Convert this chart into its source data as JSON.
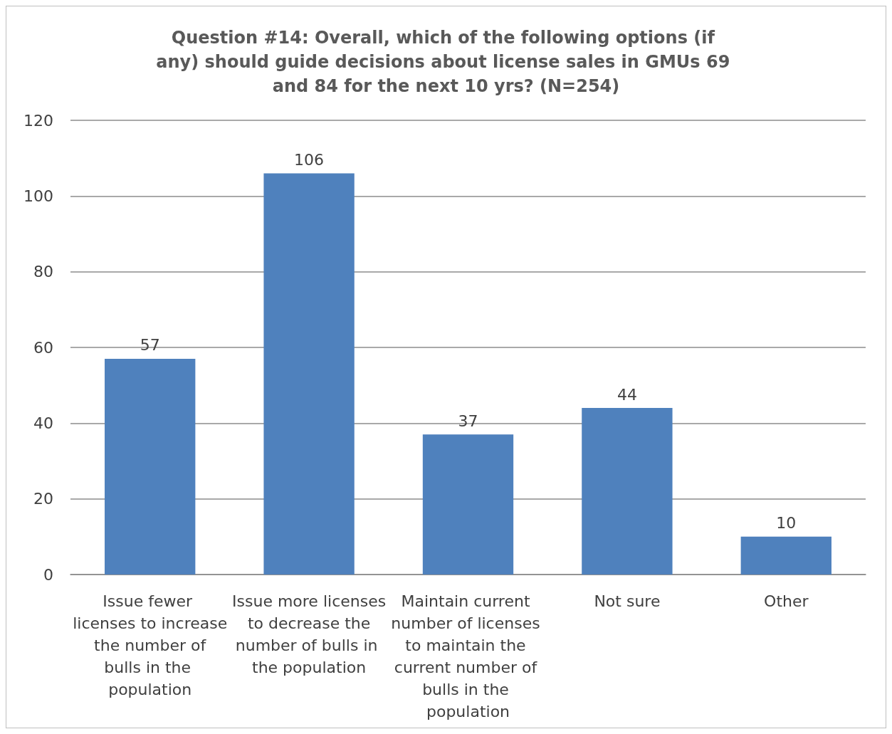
{
  "chart_data": {
    "type": "bar",
    "title": "Question #14: Overall, which of the following options (if any) should guide decisions about license sales in GMUs 69 and 84 for the next 10 yrs? (N=254)",
    "categories": [
      "Issue fewer licenses to increase the number of bulls in the population",
      "Issue more licenses to decrease the number of bulls in the population",
      "Maintain current number of licenses to maintain the current number of bulls in the population",
      "Not sure",
      "Other"
    ],
    "values": [
      57,
      106,
      37,
      44,
      10
    ],
    "color": "#4f81bd",
    "ylim": [
      0,
      120
    ],
    "yticks": [
      0,
      20,
      40,
      60,
      80,
      100,
      120
    ],
    "grid": "y",
    "data_labels": true
  }
}
